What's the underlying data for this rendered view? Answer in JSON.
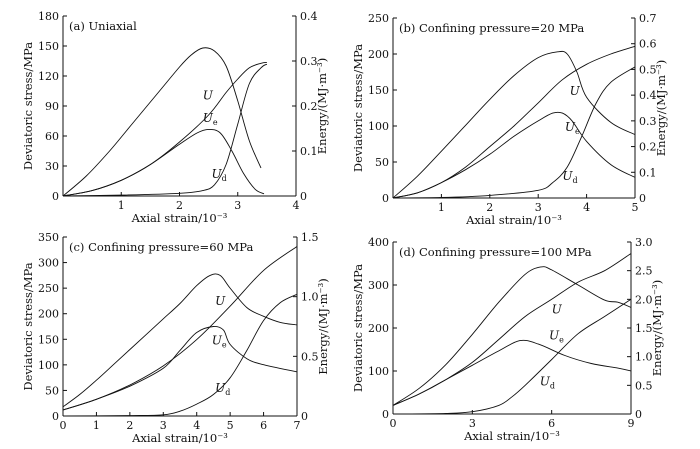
{
  "chart_data": [
    {
      "type": "line",
      "title": "(a) Uniaxial",
      "xlabel": "Axial strain/10⁻³",
      "ylabel": "Deviatoric stress/MPa",
      "y2label": "Energy/(MJ·m⁻³)",
      "xlim": [
        0,
        4
      ],
      "ylim": [
        0,
        180
      ],
      "y2lim": [
        0,
        0.4
      ],
      "xticks": [
        "1",
        "2",
        "3",
        "4"
      ],
      "yticks": [
        "0",
        "30",
        "60",
        "90",
        "120",
        "150",
        "180"
      ],
      "y2ticks": [
        "0",
        "0.1",
        "0.2",
        "0.3",
        "0.4"
      ],
      "series": [
        {
          "name": "",
          "axis": "stress",
          "x": [
            0,
            0.4,
            0.8,
            1.2,
            1.6,
            2.0,
            2.2,
            2.4,
            2.6,
            2.8,
            3.0,
            3.2,
            3.4
          ],
          "y": [
            0,
            20,
            45,
            73,
            101,
            129,
            141,
            148,
            145,
            130,
            95,
            55,
            28
          ]
        },
        {
          "name": "U",
          "label": "U",
          "axis": "energy",
          "x": [
            0,
            0.5,
            1.0,
            1.5,
            2.0,
            2.5,
            2.8,
            3.0,
            3.2,
            3.4,
            3.5
          ],
          "y": [
            0,
            0.012,
            0.035,
            0.07,
            0.12,
            0.18,
            0.23,
            0.26,
            0.285,
            0.295,
            0.297
          ]
        },
        {
          "name": "Ue",
          "label": "U",
          "sub": "e",
          "axis": "energy",
          "x": [
            0,
            0.5,
            1.0,
            1.5,
            2.0,
            2.3,
            2.5,
            2.7,
            2.9,
            3.1,
            3.3,
            3.45
          ],
          "y": [
            0,
            0.012,
            0.035,
            0.07,
            0.115,
            0.14,
            0.148,
            0.14,
            0.1,
            0.05,
            0.015,
            0.005
          ]
        },
        {
          "name": "Ud",
          "label": "U",
          "sub": "d",
          "axis": "energy",
          "x": [
            0,
            1.0,
            2.0,
            2.4,
            2.6,
            2.8,
            3.0,
            3.2,
            3.4,
            3.5
          ],
          "y": [
            0,
            0.002,
            0.006,
            0.012,
            0.025,
            0.07,
            0.16,
            0.25,
            0.285,
            0.293
          ]
        }
      ]
    },
    {
      "type": "line",
      "title": "(b) Confining pressure=20 MPa",
      "xlabel": "Axial strain/10⁻³",
      "ylabel": "Deviatoric stress/MPa",
      "y2label": "Energy/(MJ·m⁻³)",
      "xlim": [
        0,
        5
      ],
      "ylim": [
        0,
        250
      ],
      "y2lim": [
        0,
        0.7
      ],
      "xticks": [
        "1",
        "2",
        "3",
        "4",
        "5"
      ],
      "yticks": [
        "0",
        "50",
        "100",
        "150",
        "200",
        "250"
      ],
      "y2ticks": [
        "0",
        "0.1",
        "0.2",
        "0.3",
        "0.4",
        "0.5",
        "0.6",
        "0.7"
      ],
      "series": [
        {
          "name": "",
          "axis": "stress",
          "x": [
            0,
            0.5,
            1.0,
            1.5,
            2.0,
            2.5,
            3.0,
            3.4,
            3.6,
            3.8,
            4.0,
            4.5,
            5.0
          ],
          "y": [
            0,
            30,
            65,
            101,
            137,
            170,
            195,
            203,
            200,
            175,
            140,
            105,
            88
          ]
        },
        {
          "name": "U",
          "label": "U",
          "axis": "energy",
          "x": [
            0,
            0.5,
            1.0,
            1.5,
            2.0,
            2.5,
            3.0,
            3.5,
            4.0,
            4.5,
            5.0
          ],
          "y": [
            0,
            0.02,
            0.06,
            0.12,
            0.2,
            0.28,
            0.37,
            0.46,
            0.52,
            0.56,
            0.59
          ]
        },
        {
          "name": "Ue",
          "label": "U",
          "sub": "e",
          "axis": "energy",
          "x": [
            0,
            0.5,
            1.0,
            1.5,
            2.0,
            2.5,
            3.0,
            3.3,
            3.5,
            3.7,
            4.0,
            4.5,
            5.0
          ],
          "y": [
            0,
            0.02,
            0.06,
            0.11,
            0.17,
            0.24,
            0.3,
            0.33,
            0.33,
            0.3,
            0.22,
            0.13,
            0.08
          ]
        },
        {
          "name": "Ud",
          "label": "U",
          "sub": "d",
          "axis": "energy",
          "x": [
            0,
            1.0,
            2.0,
            3.0,
            3.3,
            3.6,
            3.9,
            4.2,
            4.5,
            5.0
          ],
          "y": [
            0,
            0.002,
            0.01,
            0.03,
            0.06,
            0.12,
            0.24,
            0.37,
            0.45,
            0.51
          ]
        }
      ]
    },
    {
      "type": "line",
      "title": "(c) Confining pressure=60 MPa",
      "xlabel": "Axial strain/10⁻³",
      "ylabel": "Deviatoric stress/MPa",
      "y2label": "Energy/(MJ·m⁻³)",
      "xlim": [
        0,
        7
      ],
      "ylim": [
        0,
        350
      ],
      "y2lim": [
        0,
        1.5
      ],
      "xticks": [
        "0",
        "1",
        "2",
        "3",
        "4",
        "5",
        "6",
        "7"
      ],
      "yticks": [
        "0",
        "50",
        "100",
        "150",
        "200",
        "250",
        "300",
        "350"
      ],
      "y2ticks": [
        "0",
        "0.5",
        "1.0",
        "1.5"
      ],
      "series": [
        {
          "name": "",
          "axis": "stress",
          "x": [
            0,
            0.5,
            1.0,
            1.5,
            2.0,
            2.5,
            3.0,
            3.5,
            4.0,
            4.4,
            4.7,
            5.0,
            5.5,
            6.0,
            6.5,
            7.0
          ],
          "y": [
            18,
            42,
            70,
            100,
            130,
            160,
            190,
            220,
            255,
            275,
            275,
            250,
            212,
            195,
            183,
            178
          ]
        },
        {
          "name": "U",
          "label": "U",
          "axis": "energy",
          "x": [
            0,
            1.0,
            2.0,
            3.0,
            4.0,
            5.0,
            6.0,
            7.0
          ],
          "y": [
            0.05,
            0.14,
            0.26,
            0.42,
            0.64,
            0.92,
            1.22,
            1.42
          ]
        },
        {
          "name": "Ue",
          "label": "U",
          "sub": "e",
          "axis": "energy",
          "x": [
            0,
            1.0,
            2.0,
            3.0,
            3.5,
            4.0,
            4.5,
            4.8,
            5.0,
            5.5,
            6.0,
            7.0
          ],
          "y": [
            0.05,
            0.14,
            0.25,
            0.4,
            0.55,
            0.7,
            0.75,
            0.72,
            0.6,
            0.48,
            0.43,
            0.37
          ]
        },
        {
          "name": "Ud",
          "label": "U",
          "sub": "d",
          "axis": "energy",
          "x": [
            0,
            2.0,
            3.0,
            3.5,
            4.0,
            4.5,
            5.0,
            5.5,
            6.0,
            6.5,
            7.0
          ],
          "y": [
            0,
            0.003,
            0.01,
            0.04,
            0.1,
            0.18,
            0.32,
            0.55,
            0.8,
            0.95,
            1.02
          ]
        }
      ]
    },
    {
      "type": "line",
      "title": "(d) Confining pressure=100 MPa",
      "xlabel": "Axial strain/10⁻³",
      "ylabel": "Deviatoric stress/MPa",
      "y2label": "Energy/(MJ·m⁻³)",
      "xlim": [
        0,
        9
      ],
      "ylim": [
        0,
        400
      ],
      "y2lim": [
        0,
        3.0
      ],
      "xticks": [
        "0",
        "3",
        "6",
        "9"
      ],
      "yticks": [
        "0",
        "100",
        "200",
        "300",
        "400"
      ],
      "y2ticks": [
        "0",
        "0.5",
        "1.0",
        "1.5",
        "2.0",
        "2.5",
        "3.0"
      ],
      "series": [
        {
          "name": "",
          "axis": "stress",
          "x": [
            0,
            1.0,
            2.0,
            3.0,
            4.0,
            5.0,
            5.6,
            6.0,
            7.0,
            8.0,
            8.5,
            9.0
          ],
          "y": [
            20,
            60,
            115,
            185,
            260,
            325,
            342,
            335,
            300,
            265,
            260,
            248
          ]
        },
        {
          "name": "U",
          "label": "U",
          "axis": "energy",
          "x": [
            0,
            1.0,
            2.0,
            3.0,
            4.0,
            5.0,
            6.0,
            7.0,
            8.0,
            9.0
          ],
          "y": [
            0.15,
            0.35,
            0.6,
            0.9,
            1.3,
            1.7,
            2.0,
            2.3,
            2.5,
            2.8
          ]
        },
        {
          "name": "Ue",
          "label": "U",
          "sub": "e",
          "axis": "energy",
          "x": [
            0,
            1.0,
            2.0,
            3.0,
            4.0,
            4.8,
            5.5,
            6.5,
            7.5,
            8.5,
            9.0
          ],
          "y": [
            0.15,
            0.35,
            0.6,
            0.85,
            1.1,
            1.28,
            1.22,
            1.02,
            0.88,
            0.8,
            0.75
          ]
        },
        {
          "name": "Ud",
          "label": "U",
          "sub": "d",
          "axis": "energy",
          "x": [
            0,
            2.0,
            3.0,
            4.0,
            4.5,
            5.0,
            6.0,
            7.0,
            8.0,
            9.0
          ],
          "y": [
            0,
            0.01,
            0.04,
            0.15,
            0.3,
            0.5,
            0.95,
            1.4,
            1.7,
            2.0
          ]
        }
      ]
    }
  ]
}
